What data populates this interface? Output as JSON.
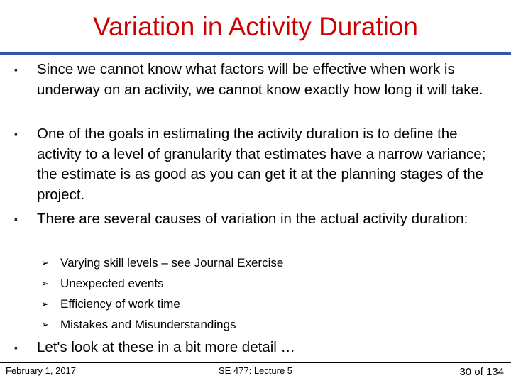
{
  "slide": {
    "title": "Variation in Activity Duration",
    "bullets": [
      {
        "mark": "▪",
        "text": "Since we cannot know what factors will be effective when work is underway on an activity, we cannot know exactly how long it will take."
      },
      {
        "mark": "▪",
        "text": "One of the goals in estimating the  activity duration is to define the activity to a level of granularity that estimates have a narrow variance; the estimate is as good as you can get it at the planning stages of the project."
      },
      {
        "mark": "▪",
        "text": "There are several causes of variation in the actual activity duration:"
      }
    ],
    "sub_bullets": [
      {
        "mark": "➢",
        "text": "Varying skill levels – see Journal Exercise"
      },
      {
        "mark": "➢",
        "text": "Unexpected events"
      },
      {
        "mark": "➢",
        "text": "Efficiency of work time"
      },
      {
        "mark": "➢",
        "text": "Mistakes and Misunderstandings"
      }
    ],
    "closing_bullet": {
      "mark": "▪",
      "text": "Let's look at these in a bit more detail …"
    }
  },
  "footer": {
    "date": "February 1, 2017",
    "course": "SE 477: Lecture 5",
    "page": "30 of 134"
  }
}
